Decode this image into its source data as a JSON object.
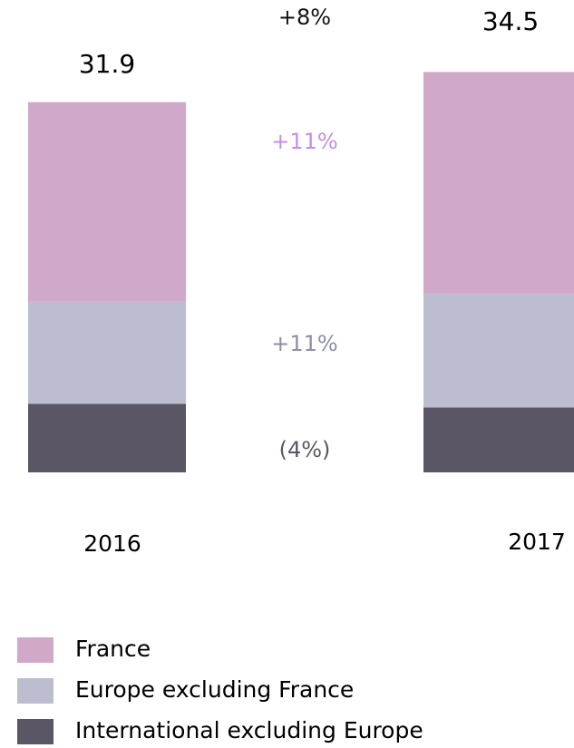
{
  "chart_data": {
    "type": "stacked_bar",
    "categories": [
      "2016",
      "2017"
    ],
    "series": [
      {
        "name": "International excluding Europe",
        "color": "#5a5666",
        "values": [
          5.9,
          5.6
        ]
      },
      {
        "name": "Europe excluding France",
        "color": "#bdbdd0",
        "values": [
          8.8,
          9.8
        ]
      },
      {
        "name": "France",
        "color": "#d0a8c8",
        "values": [
          17.2,
          19.1
        ]
      }
    ],
    "totals": [
      31.9,
      34.5
    ],
    "annotations": [
      {
        "text": "+8%",
        "color": "#111111"
      },
      {
        "text": "+11%",
        "color": "#c48fe0"
      },
      {
        "text": "+11%",
        "color": "#8e8ea6"
      },
      {
        "text": "(4%)",
        "color": "#5a5666"
      }
    ]
  }
}
